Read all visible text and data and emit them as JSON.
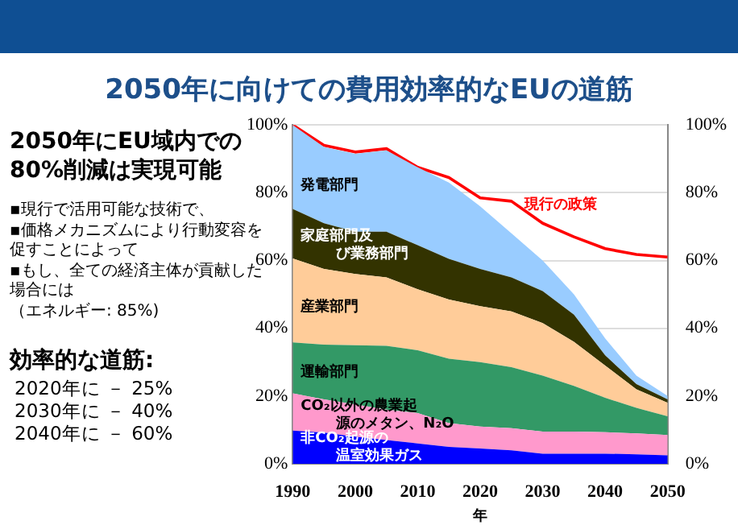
{
  "chart_data": {
    "type": "area",
    "title": "2050年に向けての費用効率的なEUの道筋",
    "xlabel": "年",
    "stacked": true,
    "legend": false,
    "grid": "y",
    "annotations": [
      "2050年にEU域内での80%削減は実現可能",
      "▪現行で活用可能な技術で、",
      "▪価格メカニズムにより行動変容を促すことによって",
      "▪もし、全ての経済主体が貢献した場合には",
      "（エネルギー: 85%)",
      "効率的な道筋:",
      "2020年に － 25%",
      "2030年に － 40%",
      "2040年に － 60%"
    ],
    "x": [
      1990,
      1995,
      2000,
      2005,
      2010,
      2015,
      2020,
      2025,
      2030,
      2035,
      2040,
      2045,
      2050
    ],
    "xlim": [
      1990,
      2050
    ],
    "xticks": [
      1990,
      2000,
      2010,
      2020,
      2030,
      2040,
      2050
    ],
    "ylim": [
      0,
      100
    ],
    "yticks": [
      {
        "value": 0,
        "label": "0%"
      },
      {
        "value": 20,
        "label": "20%"
      },
      {
        "value": 40,
        "label": "40%"
      },
      {
        "value": 60,
        "label": "60%"
      },
      {
        "value": 80,
        "label": "80%"
      },
      {
        "value": 100,
        "label": "100%"
      }
    ],
    "y2lim": [
      0,
      100
    ],
    "y2ticks": [
      {
        "value": 0,
        "label": "0%"
      },
      {
        "value": 20,
        "label": "20%"
      },
      {
        "value": 40,
        "label": "40%"
      },
      {
        "value": 60,
        "label": "60%"
      },
      {
        "value": 80,
        "label": "80%"
      },
      {
        "value": 100,
        "label": "100%"
      }
    ],
    "series": [
      {
        "name": "非CO₂起源の温室効果ガス",
        "type": "area",
        "color": "#0000ff",
        "values": [
          9.8,
          9.2,
          8,
          7,
          6,
          5,
          4.5,
          4,
          3,
          3,
          3,
          2.8,
          2.5
        ]
      },
      {
        "name": "CO₂以外の農業起源のメタン、N₂O",
        "type": "area",
        "color": "#ff99cc",
        "values": [
          11,
          9.8,
          9.5,
          9,
          9,
          7,
          6.5,
          6.5,
          6.5,
          6.5,
          6.3,
          6.2,
          6
        ]
      },
      {
        "name": "運輸部門",
        "type": "area",
        "color": "#339966",
        "values": [
          15,
          16.2,
          17.5,
          18.8,
          18.5,
          19,
          19,
          18,
          16.5,
          13.5,
          10.2,
          7.5,
          5.5
        ]
      },
      {
        "name": "産業部門",
        "type": "area",
        "color": "#ffcc99",
        "values": [
          24.8,
          22.3,
          21,
          20.2,
          18,
          17.5,
          16.5,
          16.5,
          15.5,
          13,
          9.5,
          5.5,
          4
        ]
      },
      {
        "name": "家庭部門及び業務部門",
        "type": "area",
        "color": "#333300",
        "values": [
          14.6,
          13.5,
          12.5,
          13.5,
          13,
          12,
          11,
          10,
          9.5,
          8,
          3,
          1.5,
          1
        ]
      },
      {
        "name": "発電部門",
        "type": "area",
        "color": "#99ccff",
        "values": [
          24.8,
          22.5,
          23,
          24,
          23,
          22.5,
          18.5,
          13,
          9,
          6,
          5,
          2.5,
          1
        ]
      },
      {
        "name": "現行の政策",
        "type": "line",
        "color": "#ff0000",
        "values": [
          100,
          94,
          92,
          93,
          87.5,
          84.5,
          78.5,
          77.5,
          71,
          67,
          63.5,
          61.8,
          61
        ]
      }
    ]
  }
}
